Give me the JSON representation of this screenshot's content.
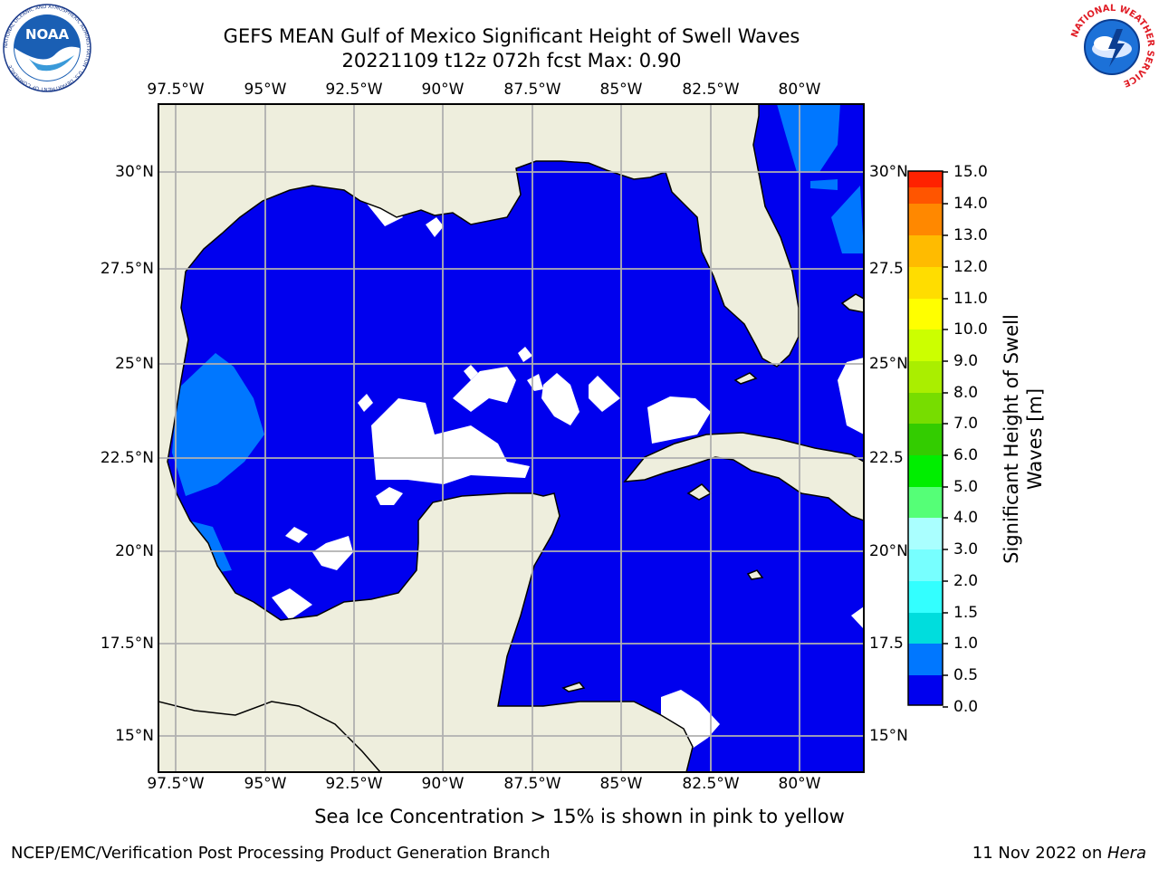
{
  "title_line1": "GEFS MEAN Gulf of Mexico Significant Height of Swell Waves",
  "title_line2": "20221109 t12z 072h fcst   Max: 0.90",
  "lon_labels": [
    "97.5°W",
    "95°W",
    "92.5°W",
    "90°W",
    "87.5°W",
    "85°W",
    "82.5°W",
    "80°W"
  ],
  "lat_labels": [
    "30°N",
    "27.5°N",
    "25°N",
    "22.5°N",
    "20°N",
    "17.5°N",
    "15°N"
  ],
  "lat_labels_right": [
    "30°N",
    "27.5",
    "25°N",
    "22.5",
    "20°N",
    "17.5",
    "15°N"
  ],
  "colorbar": {
    "title": "Significant Height of Swell Waves [m]",
    "title_line1": "Significant Height of Swell",
    "title_line2": "Waves [m]",
    "ticks": [
      "15.0",
      "14.0",
      "13.0",
      "12.0",
      "11.0",
      "10.0",
      "9.0",
      "8.0",
      "7.0",
      "6.0",
      "5.0",
      "4.0",
      "3.0",
      "2.0",
      "1.5",
      "1.0",
      "0.5",
      "0.0"
    ],
    "colors_bottom_to_top": [
      "#0000ee",
      "#0077ff",
      "#00dddd",
      "#33ffff",
      "#77ffff",
      "#aaffff",
      "#55ff77",
      "#00ee00",
      "#33cc00",
      "#77dd00",
      "#aaee00",
      "#ccff00",
      "#ffff00",
      "#ffdd00",
      "#ffbb00",
      "#ff8800",
      "#ff5500",
      "#ff2200",
      "#ff0000"
    ]
  },
  "note": "Sea Ice Concentration > 15% is shown in pink to yellow",
  "credit": "NCEP/EMC/Verification Post Processing Product Generation Branch",
  "date_prefix": "11 Nov 2022 on ",
  "date_machine": "Hera",
  "colors": {
    "land": "#eeeedd",
    "swell_low": "#0000ee",
    "swell_mid": "#0077ff",
    "gridline": "#b0b0b0"
  },
  "logos": {
    "left": "NOAA",
    "left_ring": "NATIONAL OCEANIC AND ATMOSPHERIC ADMINISTRATION · U.S. DEPARTMENT OF COMMERCE",
    "right_ring": "NATIONAL WEATHER SERVICE"
  }
}
